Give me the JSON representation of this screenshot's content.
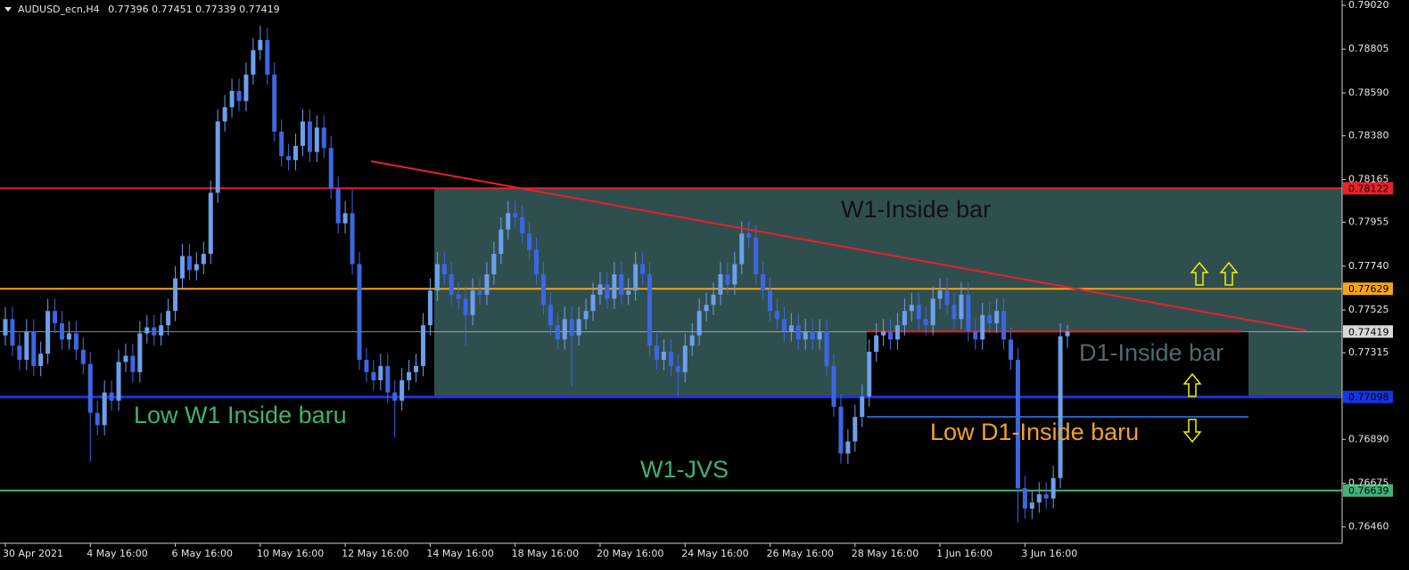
{
  "chart_data": {
    "type": "candlestick",
    "symbol": "AUDUSD_ecn,H4",
    "up_color": "#6e9fec",
    "down_color": "#3d66e2",
    "ylim": [
      0.7638,
      0.79046
    ],
    "yticks": [
      {
        "value": 0.7902,
        "label": "0.79020"
      },
      0.78805,
      {
        "value": 0.7859,
        "label": "0.78590"
      },
      {
        "value": 0.7838,
        "label": "0.78380"
      },
      0.78165,
      0.77955,
      {
        "value": 0.7774,
        "label": "0.77740"
      },
      0.77525,
      0.77315,
      {
        "value": 0.7689,
        "label": "0.76890"
      },
      0.76675,
      {
        "value": 0.7646,
        "label": "0.76460"
      }
    ],
    "xticks": [
      {
        "value": 0,
        "label": "30 Apr 2021"
      },
      {
        "value": 12,
        "label": "4 May 16:00"
      },
      {
        "value": 24,
        "label": "6 May 16:00"
      },
      {
        "value": 36,
        "label": "10 May 16:00"
      },
      {
        "value": 48,
        "label": "12 May 16:00"
      },
      {
        "value": 60,
        "label": "14 May 16:00"
      },
      {
        "value": 72,
        "label": "18 May 16:00"
      },
      {
        "value": 84,
        "label": "20 May 16:00"
      },
      {
        "value": 96,
        "label": "24 May 16:00"
      },
      {
        "value": 108,
        "label": "26 May 16:00"
      },
      {
        "value": 120,
        "label": "28 May 16:00"
      },
      {
        "value": 132,
        "label": "1 Jun 16:00"
      },
      {
        "value": 144,
        "label": "3 Jun 16:00"
      }
    ],
    "grid": false,
    "levels": [
      {
        "value": 0.78122,
        "color": "#e8212b"
      },
      {
        "value": 0.77629,
        "color": "#f5a418"
      },
      {
        "value": 0.77098,
        "color": "#1733e6"
      },
      {
        "value": 0.76639,
        "color": "#3fb37a"
      },
      {
        "value": 0.77419,
        "color": "#d8d8d8"
      }
    ],
    "annotations": [
      {
        "text": "W1-Inside bar",
        "color": "#111111"
      },
      {
        "text": "Low W1 Inside baru",
        "color": "#3cb371"
      },
      {
        "text": "W1-JVS",
        "color": "#3cb371"
      },
      {
        "text": "D1-Inside bar",
        "color": "#4f6b6b"
      },
      {
        "text": "Low D1-Inside baru",
        "color": "#f2a22e"
      }
    ],
    "open": [
      0.774,
      0.7748,
      0.7735,
      0.7728,
      0.7742,
      0.7725,
      0.7731,
      0.7752,
      0.7746,
      0.7738,
      0.7741,
      0.7733,
      0.7726,
      0.7702,
      0.7696,
      0.7712,
      0.7708,
      0.7727,
      0.773,
      0.7722,
      0.7741,
      0.7744,
      0.774,
      0.7745,
      0.7752,
      0.7768,
      0.7779,
      0.7772,
      0.7775,
      0.778,
      0.781,
      0.7845,
      0.7852,
      0.786,
      0.7855,
      0.7868,
      0.788,
      0.7885,
      0.7868,
      0.784,
      0.7828,
      0.7826,
      0.7833,
      0.7845,
      0.783,
      0.7842,
      0.7832,
      0.7812,
      0.7795,
      0.78,
      0.7775,
      0.7728,
      0.7722,
      0.7718,
      0.7725,
      0.7712,
      0.7708,
      0.7718,
      0.7722,
      0.7725,
      0.7745,
      0.7762,
      0.7775,
      0.777,
      0.776,
      0.7758,
      0.775,
      0.7762,
      0.776,
      0.777,
      0.778,
      0.7792,
      0.78,
      0.7798,
      0.779,
      0.7782,
      0.777,
      0.7755,
      0.7745,
      0.7738,
      0.7748,
      0.774,
      0.7748,
      0.7752,
      0.776,
      0.7765,
      0.7758,
      0.777,
      0.776,
      0.7762,
      0.7775,
      0.777,
      0.7735,
      0.7728,
      0.7732,
      0.7725,
      0.7722,
      0.7735,
      0.774,
      0.7752,
      0.7755,
      0.776,
      0.777,
      0.7765,
      0.7775,
      0.779,
      0.7788,
      0.777,
      0.7762,
      0.7752,
      0.7748,
      0.7742,
      0.7745,
      0.7738,
      0.7742,
      0.7738,
      0.7742,
      0.7725,
      0.7705,
      0.7682,
      0.7688,
      0.77,
      0.771,
      0.7732,
      0.774,
      0.7742,
      0.7738,
      0.7745,
      0.7752,
      0.7755,
      0.7748,
      0.7745,
      0.7758,
      0.7762,
      0.7755,
      0.7748,
      0.776,
      0.7742,
      0.7738,
      0.775,
      0.7746,
      0.7752,
      0.7738,
      0.7728,
      0.7665,
      0.7655,
      0.7658,
      0.7662,
      0.766,
      0.767,
      0.77396
    ],
    "high": [
      0.7754,
      0.7754,
      0.7741,
      0.7748,
      0.7748,
      0.7737,
      0.7758,
      0.7758,
      0.7752,
      0.7747,
      0.7747,
      0.7739,
      0.7732,
      0.7708,
      0.7718,
      0.7718,
      0.7733,
      0.7736,
      0.7736,
      0.7747,
      0.775,
      0.775,
      0.7751,
      0.7758,
      0.7774,
      0.7785,
      0.7785,
      0.7781,
      0.7786,
      0.7816,
      0.7851,
      0.7858,
      0.7866,
      0.7866,
      0.7874,
      0.7886,
      0.7892,
      0.7891,
      0.7874,
      0.7846,
      0.7834,
      0.7839,
      0.7851,
      0.7851,
      0.7848,
      0.7848,
      0.7838,
      0.7818,
      0.7806,
      0.7812,
      0.7781,
      0.7734,
      0.7728,
      0.7731,
      0.7731,
      0.7718,
      0.7724,
      0.7728,
      0.7731,
      0.7751,
      0.7768,
      0.7781,
      0.7781,
      0.7776,
      0.7766,
      0.7764,
      0.7768,
      0.7768,
      0.7776,
      0.7786,
      0.7798,
      0.7806,
      0.7806,
      0.7804,
      0.7796,
      0.7788,
      0.7776,
      0.7761,
      0.7751,
      0.7754,
      0.7754,
      0.7754,
      0.7758,
      0.7766,
      0.7771,
      0.7771,
      0.7776,
      0.7776,
      0.7768,
      0.7781,
      0.7781,
      0.7776,
      0.7741,
      0.7738,
      0.7738,
      0.7731,
      0.7741,
      0.7746,
      0.7758,
      0.7761,
      0.7766,
      0.7776,
      0.7776,
      0.7781,
      0.7796,
      0.7796,
      0.7794,
      0.7776,
      0.7768,
      0.7758,
      0.7754,
      0.7751,
      0.7751,
      0.7748,
      0.7748,
      0.7748,
      0.7748,
      0.7731,
      0.7711,
      0.7694,
      0.7706,
      0.7716,
      0.7738,
      0.7746,
      0.7748,
      0.7748,
      0.7751,
      0.7758,
      0.7761,
      0.7761,
      0.7754,
      0.7764,
      0.7768,
      0.7768,
      0.7761,
      0.7766,
      0.7766,
      0.7748,
      0.7756,
      0.7756,
      0.7758,
      0.7758,
      0.7744,
      0.7734,
      0.7671,
      0.7664,
      0.7668,
      0.7668,
      0.7676,
      0.7746,
      0.77451
    ],
    "low": [
      0.7735,
      0.773,
      0.7723,
      0.7723,
      0.772,
      0.772,
      0.7726,
      0.7741,
      0.7733,
      0.7733,
      0.7728,
      0.7721,
      0.7678,
      0.7691,
      0.7691,
      0.7703,
      0.7703,
      0.7722,
      0.7717,
      0.7717,
      0.7736,
      0.7735,
      0.7735,
      0.774,
      0.7747,
      0.7763,
      0.7767,
      0.7767,
      0.777,
      0.7775,
      0.7805,
      0.784,
      0.7847,
      0.785,
      0.785,
      0.7863,
      0.7875,
      0.7863,
      0.7835,
      0.7823,
      0.7821,
      0.7821,
      0.7828,
      0.7825,
      0.7825,
      0.7827,
      0.7807,
      0.779,
      0.779,
      0.777,
      0.7723,
      0.7717,
      0.7713,
      0.7713,
      0.7707,
      0.769,
      0.7703,
      0.7713,
      0.7717,
      0.772,
      0.774,
      0.7757,
      0.7765,
      0.7755,
      0.7753,
      0.7735,
      0.7745,
      0.7755,
      0.7755,
      0.7765,
      0.7775,
      0.7787,
      0.7793,
      0.7785,
      0.7777,
      0.7765,
      0.775,
      0.774,
      0.7733,
      0.7733,
      0.7715,
      0.7735,
      0.7743,
      0.7747,
      0.7755,
      0.7753,
      0.7753,
      0.7755,
      0.7755,
      0.7757,
      0.7765,
      0.773,
      0.7723,
      0.7723,
      0.772,
      0.771,
      0.7717,
      0.773,
      0.7735,
      0.7747,
      0.775,
      0.7755,
      0.776,
      0.776,
      0.777,
      0.7783,
      0.7765,
      0.7757,
      0.7747,
      0.7743,
      0.7737,
      0.7737,
      0.7733,
      0.7733,
      0.7733,
      0.7733,
      0.772,
      0.77,
      0.7677,
      0.7677,
      0.7683,
      0.7695,
      0.7705,
      0.7727,
      0.7735,
      0.7733,
      0.7733,
      0.774,
      0.7747,
      0.7743,
      0.774,
      0.774,
      0.7753,
      0.775,
      0.7743,
      0.7743,
      0.7737,
      0.7733,
      0.7733,
      0.7741,
      0.7741,
      0.7733,
      0.7723,
      0.7648,
      0.765,
      0.765,
      0.7653,
      0.7655,
      0.7655,
      0.7665,
      0.77339
    ],
    "close": [
      0.7748,
      0.7735,
      0.7728,
      0.7742,
      0.7725,
      0.7731,
      0.7752,
      0.7746,
      0.7738,
      0.7741,
      0.7733,
      0.7726,
      0.7702,
      0.7696,
      0.7712,
      0.7708,
      0.7727,
      0.773,
      0.7722,
      0.7741,
      0.7744,
      0.774,
      0.7745,
      0.7752,
      0.7768,
      0.7779,
      0.7772,
      0.7775,
      0.778,
      0.781,
      0.7845,
      0.7852,
      0.786,
      0.7855,
      0.7868,
      0.788,
      0.7885,
      0.7868,
      0.784,
      0.7828,
      0.7826,
      0.7833,
      0.7845,
      0.783,
      0.7842,
      0.7832,
      0.7812,
      0.7795,
      0.78,
      0.7775,
      0.7728,
      0.7722,
      0.7718,
      0.7725,
      0.7712,
      0.7708,
      0.7718,
      0.7722,
      0.7725,
      0.7745,
      0.7762,
      0.7775,
      0.777,
      0.776,
      0.7758,
      0.775,
      0.7762,
      0.776,
      0.777,
      0.778,
      0.7792,
      0.78,
      0.7798,
      0.779,
      0.7782,
      0.777,
      0.7755,
      0.7745,
      0.7738,
      0.7748,
      0.774,
      0.7748,
      0.7752,
      0.776,
      0.7765,
      0.7758,
      0.777,
      0.776,
      0.7762,
      0.7775,
      0.777,
      0.7735,
      0.7728,
      0.7732,
      0.7725,
      0.7722,
      0.7735,
      0.774,
      0.7752,
      0.7755,
      0.776,
      0.777,
      0.7765,
      0.7775,
      0.779,
      0.7788,
      0.777,
      0.7762,
      0.7752,
      0.7748,
      0.7742,
      0.7745,
      0.7738,
      0.7742,
      0.7738,
      0.7742,
      0.7725,
      0.7705,
      0.7682,
      0.7688,
      0.77,
      0.771,
      0.7732,
      0.774,
      0.7742,
      0.7738,
      0.7745,
      0.7752,
      0.7755,
      0.7748,
      0.7745,
      0.7758,
      0.7762,
      0.7755,
      0.7748,
      0.776,
      0.7742,
      0.7738,
      0.775,
      0.7746,
      0.7752,
      0.7738,
      0.7728,
      0.7665,
      0.7655,
      0.7658,
      0.7662,
      0.766,
      0.767,
      0.77396,
      0.77419
    ]
  }
}
